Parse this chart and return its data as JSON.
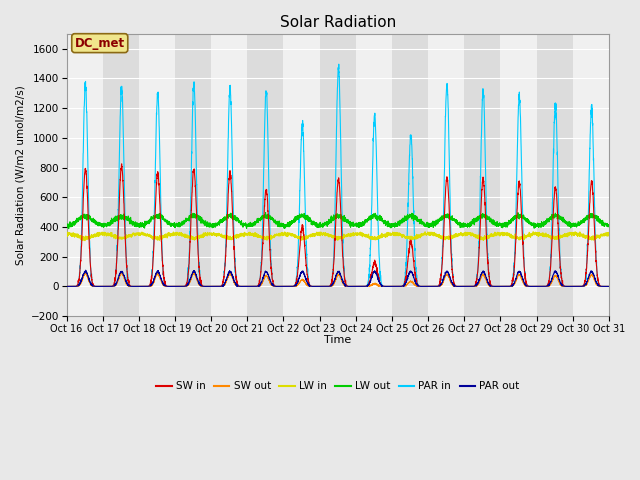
{
  "title": "Solar Radiation",
  "ylabel": "Solar Radiation (W/m2 umol/m2/s)",
  "xlabel": "Time",
  "ylim": [
    -200,
    1700
  ],
  "yticks": [
    -200,
    0,
    200,
    400,
    600,
    800,
    1000,
    1200,
    1400,
    1600
  ],
  "station_label": "DC_met",
  "xtick_labels": [
    "Oct 16",
    "Oct 17",
    "Oct 18",
    "Oct 19",
    "Oct 20",
    "Oct 21",
    "Oct 22",
    "Oct 23",
    "Oct 24",
    "Oct 25",
    "Oct 26",
    "Oct 27",
    "Oct 28",
    "Oct 29",
    "Oct 30",
    "Oct 31"
  ],
  "colors": {
    "SW_in": "#dd0000",
    "SW_out": "#ff8800",
    "LW_in": "#dddd00",
    "LW_out": "#00cc00",
    "PAR_in": "#00ccff",
    "PAR_out": "#000099"
  },
  "bg_color": "#e8e8e8",
  "plot_bg_light": "#f0f0f0",
  "plot_bg_dark": "#dcdcdc",
  "grid_color": "#ffffff"
}
